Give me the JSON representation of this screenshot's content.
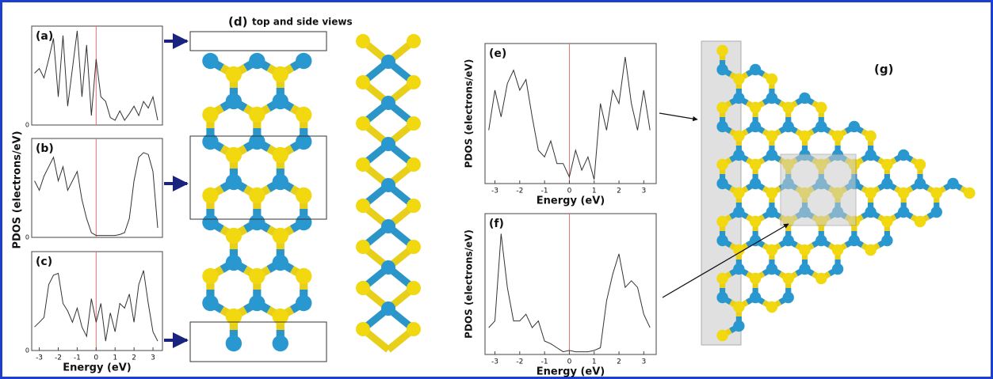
{
  "chart_data": [
    {
      "type": "line",
      "title": "(a)",
      "color": "#333333",
      "fermi_level": 0,
      "fermi_color": "#e07070",
      "x": [
        -3.25,
        -3,
        -2.75,
        -2.5,
        -2.25,
        -2,
        -1.75,
        -1.5,
        -1.25,
        -1,
        -0.75,
        -0.5,
        -0.25,
        0,
        0.25,
        0.5,
        0.75,
        1,
        1.25,
        1.5,
        1.75,
        2,
        2.25,
        2.5,
        2.75,
        3,
        3.25
      ],
      "values": [
        5.5,
        6,
        5,
        7,
        9.2,
        3,
        9.5,
        2,
        6,
        10,
        3,
        8.5,
        1,
        7,
        3,
        2.5,
        0.8,
        0.5,
        1.5,
        0.5,
        1.2,
        2,
        1,
        2.5,
        1.8,
        3,
        0.5
      ],
      "xlim": [
        -3.4,
        3.5
      ],
      "ylim": [
        0,
        10.5
      ],
      "yticks": [
        0
      ]
    },
    {
      "type": "line",
      "title": "(b)",
      "color": "#333333",
      "fermi_level": 0,
      "fermi_color": "#e07070",
      "x": [
        -3.25,
        -3,
        -2.75,
        -2.5,
        -2.25,
        -2,
        -1.75,
        -1.5,
        -1.25,
        -1,
        -0.75,
        -0.5,
        -0.25,
        0,
        0.25,
        0.5,
        0.75,
        1,
        1.25,
        1.5,
        1.75,
        2,
        2.25,
        2.5,
        2.75,
        3,
        3.25
      ],
      "values": [
        6,
        5,
        6.5,
        7.5,
        8.5,
        6,
        7.5,
        5,
        6,
        7,
        4,
        2,
        0.5,
        0.2,
        0.2,
        0.2,
        0.2,
        0.2,
        0.3,
        0.5,
        2,
        6,
        8.5,
        9,
        8.8,
        7,
        1
      ],
      "xlim": [
        -3.4,
        3.5
      ],
      "ylim": [
        0,
        10.5
      ],
      "yticks": [
        0
      ]
    },
    {
      "type": "line",
      "title": "(c)",
      "color": "#333333",
      "fermi_level": 0,
      "fermi_color": "#e07070",
      "x": [
        -3.25,
        -3,
        -2.75,
        -2.5,
        -2.25,
        -2,
        -1.75,
        -1.5,
        -1.25,
        -1,
        -0.75,
        -0.5,
        -0.25,
        0,
        0.25,
        0.5,
        0.75,
        1,
        1.25,
        1.5,
        1.75,
        2,
        2.25,
        2.5,
        2.75,
        3,
        3.25
      ],
      "values": [
        2.5,
        3,
        3.5,
        7,
        8,
        8.2,
        5,
        4.2,
        3,
        4.5,
        2.5,
        1.5,
        5.5,
        3,
        5,
        1,
        4,
        2,
        5,
        4.5,
        6,
        3,
        7,
        8.5,
        5,
        2,
        1
      ],
      "xlim": [
        -3.4,
        3.5
      ],
      "ylim": [
        0,
        10.5
      ],
      "yticks": [
        0
      ],
      "xticks": [
        -3,
        -2,
        -1,
        0,
        1,
        2,
        3
      ],
      "xlabel": "Energy (eV)"
    },
    {
      "type": "line",
      "title": "(e)",
      "color": "#333333",
      "fermi_level": 0,
      "fermi_color": "#e07070",
      "x": [
        -3.25,
        -3,
        -2.75,
        -2.5,
        -2.25,
        -2,
        -1.75,
        -1.5,
        -1.25,
        -1,
        -0.75,
        -0.5,
        -0.25,
        0,
        0.25,
        0.5,
        0.75,
        1,
        1.25,
        1.5,
        1.75,
        2,
        2.25,
        2.5,
        2.75,
        3,
        3.25
      ],
      "values": [
        4,
        7,
        5,
        7.5,
        8.5,
        7,
        7.8,
        5,
        2.5,
        2,
        3.2,
        1.5,
        1.5,
        0.5,
        2.5,
        1,
        2,
        0.3,
        6,
        4,
        7,
        6,
        9.5,
        6,
        4,
        7,
        4
      ],
      "xlim": [
        -3.4,
        3.5
      ],
      "ylim": [
        0,
        10.5
      ],
      "xticks": [
        -3,
        -2,
        -1,
        0,
        1,
        2,
        3
      ],
      "xlabel": "Energy (eV)",
      "ylabel": "PDOS (electrons/eV)"
    },
    {
      "type": "line",
      "title": "(f)",
      "color": "#333333",
      "fermi_level": 0,
      "fermi_color": "#e07070",
      "x": [
        -3.25,
        -3,
        -2.75,
        -2.5,
        -2.25,
        -2,
        -1.75,
        -1.5,
        -1.25,
        -1,
        -0.75,
        -0.5,
        -0.25,
        0,
        0.25,
        0.5,
        0.75,
        1,
        1.25,
        1.5,
        1.75,
        2,
        2.25,
        2.5,
        2.75,
        3,
        3.25
      ],
      "values": [
        2,
        2.5,
        9,
        5,
        2.5,
        2.5,
        3,
        2,
        2.5,
        1,
        0.8,
        0.5,
        0.2,
        0.3,
        0.2,
        0.2,
        0.2,
        0.3,
        0.5,
        4,
        6,
        7.5,
        5,
        5.5,
        5,
        3,
        2
      ],
      "xlim": [
        -3.4,
        3.5
      ],
      "ylim": [
        0,
        10.5
      ],
      "xticks": [
        -3,
        -2,
        -1,
        0,
        1,
        2,
        3
      ],
      "xlabel": "Energy (eV)",
      "ylabel": "PDOS (electrons/eV)"
    }
  ],
  "shared_ylabel": "PDOS (electrons/eV)",
  "panel_d": {
    "label": "(d)",
    "caption": "top and side views"
  },
  "panel_g": {
    "label": "(g)"
  }
}
